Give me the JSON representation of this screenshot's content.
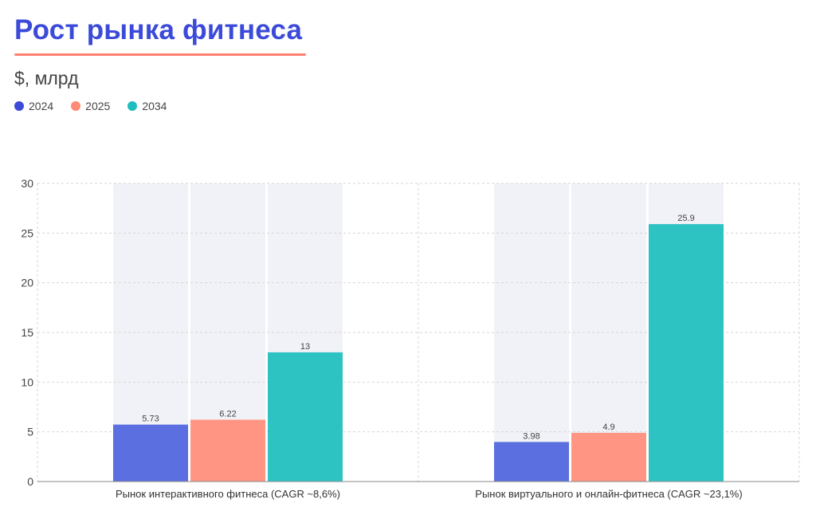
{
  "header": {
    "title": "Рост рынка фитнеса",
    "subtitle": "$, млрд"
  },
  "colors": {
    "title": "#3b4ad9",
    "underline": "#ff7f6e",
    "band": "#f1f2f7",
    "grid": "#d6d6d6",
    "axis": "#888888"
  },
  "chart_data": {
    "type": "bar",
    "title": "Рост рынка фитнеса",
    "ylabel": "$, млрд",
    "xlabel": "",
    "ylim": [
      0,
      30
    ],
    "yticks": [
      0,
      5,
      10,
      15,
      20,
      25,
      30
    ],
    "grid": true,
    "legend_position": "top-left",
    "categories": [
      "Рынок интерактивного фитнеса (CAGR ~8,6%)",
      "Рынок виртуального и онлайн-фитнеса (CAGR ~23,1%)"
    ],
    "series": [
      {
        "name": "2024",
        "color": "#5b6fe0",
        "legend_color": "#3b4ad9",
        "values": [
          5.73,
          3.98
        ],
        "labels": [
          "5.73",
          "3.98"
        ]
      },
      {
        "name": "2025",
        "color": "#ff9582",
        "legend_color": "#ff8a75",
        "values": [
          6.22,
          4.9
        ],
        "labels": [
          "6.22",
          "4.9"
        ]
      },
      {
        "name": "2034",
        "color": "#2ec3c3",
        "legend_color": "#1fbdbd",
        "values": [
          13,
          25.9
        ],
        "labels": [
          "13",
          "25.9"
        ]
      }
    ]
  }
}
